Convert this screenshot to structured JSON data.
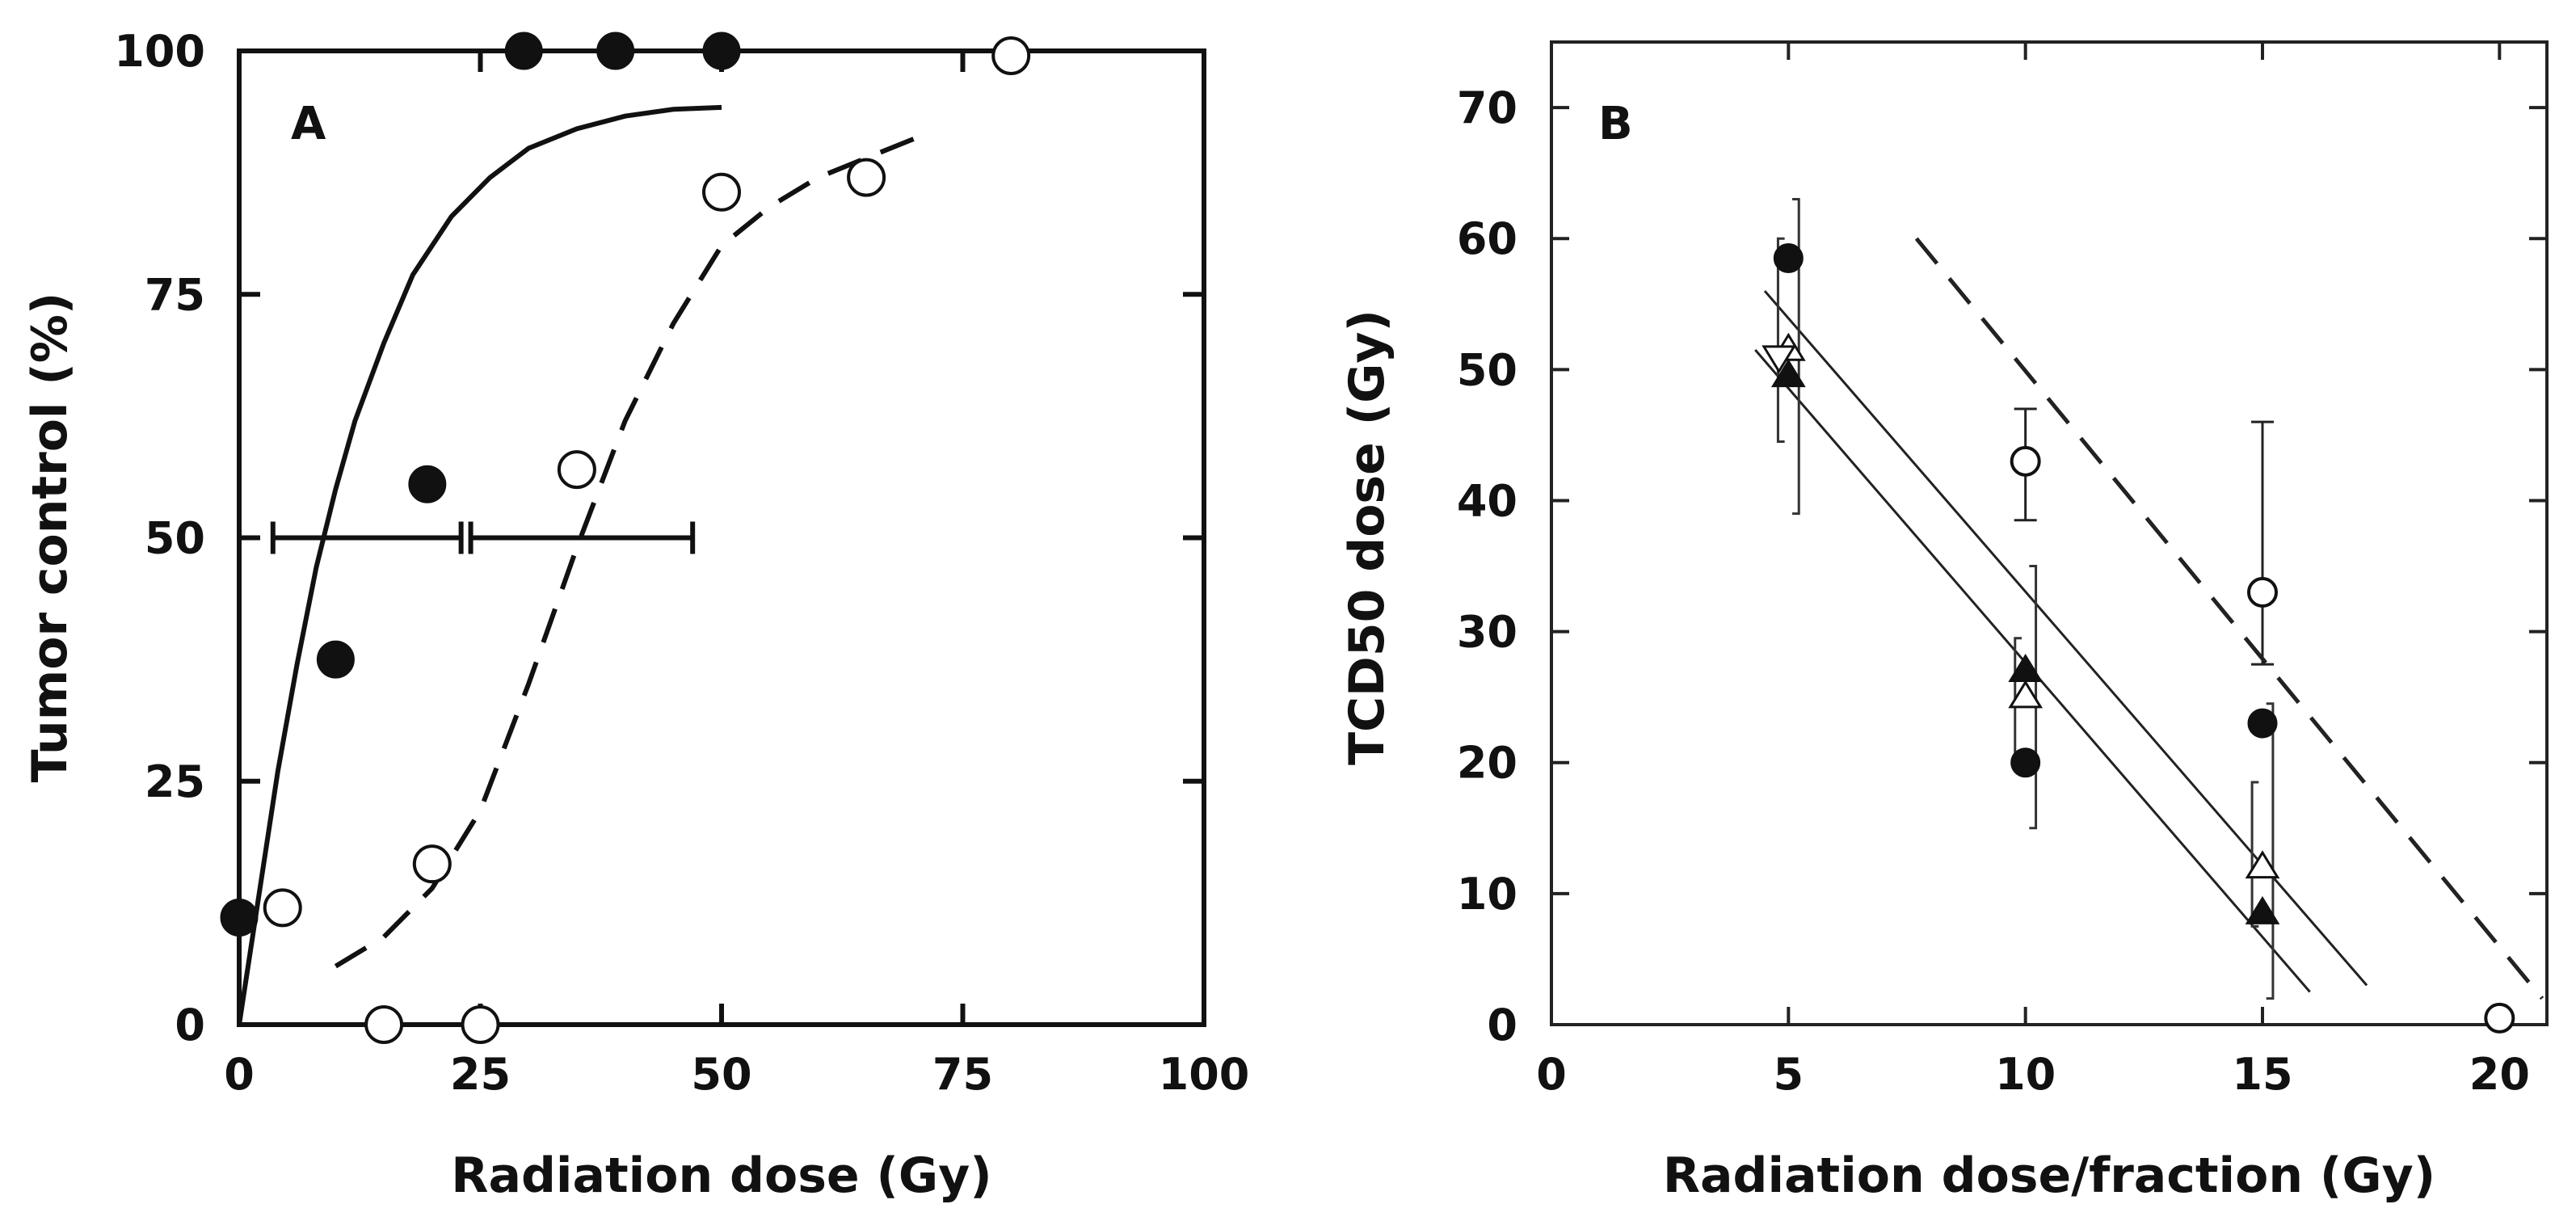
{
  "chart_data": [
    {
      "panel": "A",
      "type": "scatter",
      "xlabel": "Radiation dose (Gy)",
      "ylabel": "Tumor control (%)",
      "xlim": [
        0,
        100
      ],
      "ylim": [
        0,
        100
      ],
      "xticks": [
        "0",
        "25",
        "50",
        "75",
        "100"
      ],
      "yticks": [
        "0",
        "25",
        "50",
        "75",
        "100"
      ],
      "grid": false,
      "series": [
        {
          "marker": "filled-circle",
          "x": [
            0,
            10,
            19.5,
            29.5,
            39,
            50
          ],
          "y": [
            11,
            37.5,
            55.5,
            100,
            100,
            100
          ],
          "fit": {
            "style": "solid",
            "x": [
              0,
              2,
              4,
              6,
              8,
              10,
              12,
              15,
              18,
              22,
              26,
              30,
              35,
              40,
              45,
              50
            ],
            "y": [
              0,
              13,
              26,
              37,
              47,
              55,
              62,
              70,
              77,
              83,
              87,
              90,
              92,
              93.3,
              94,
              94.2
            ]
          }
        },
        {
          "marker": "open-circle",
          "x": [
            4.5,
            15,
            20,
            25,
            35,
            50,
            65,
            80
          ],
          "y": [
            12,
            0,
            16.5,
            0,
            57,
            85.5,
            87,
            99.5
          ],
          "fit": {
            "style": "dashed",
            "x": [
              10,
              15,
              20,
              25,
              30,
              35,
              40,
              45,
              50,
              55,
              60,
              65,
              70
            ],
            "y": [
              6,
              9,
              14,
              22,
              35,
              49,
              62,
              72,
              80,
              84,
              87,
              89,
              91
            ]
          }
        }
      ],
      "error_bars": [
        {
          "y": 50,
          "xmin": 3.5,
          "xmax": 23
        },
        {
          "y": 50,
          "xmin": 24,
          "xmax": 47
        }
      ]
    },
    {
      "panel": "B",
      "type": "scatter",
      "xlabel": "Radiation dose/fraction (Gy)",
      "ylabel": "TCD50 dose (Gy)",
      "xlim": [
        0,
        21
      ],
      "ylim": [
        0,
        75
      ],
      "xticks": [
        "0",
        "5",
        "10",
        "15",
        "20"
      ],
      "yticks": [
        "0",
        "10",
        "20",
        "30",
        "40",
        "50",
        "60",
        "70"
      ],
      "grid": false,
      "series": [
        {
          "marker": "filled-circle",
          "x": [
            5,
            10,
            15
          ],
          "y": [
            58.5,
            20,
            23
          ]
        },
        {
          "marker": "open-triangle",
          "x": [
            5,
            10,
            15
          ],
          "y": [
            51.5,
            25,
            12
          ]
        },
        {
          "marker": "filled-triangle",
          "x": [
            5,
            10,
            15
          ],
          "y": [
            49.5,
            27,
            8.5
          ]
        },
        {
          "marker": "open-circle",
          "x": [
            10,
            15,
            20
          ],
          "y": [
            43,
            33,
            0.5
          ]
        },
        {
          "marker": "open-inverted-triangle",
          "x": [
            4.8
          ],
          "y": [
            51
          ]
        }
      ],
      "error_bars": [
        {
          "x": 10,
          "ylow": 38.5,
          "yhigh": 47
        },
        {
          "x": 15,
          "ylow": 27.5,
          "yhigh": 46
        }
      ],
      "brackets": [
        {
          "x": 5,
          "ylow": 44.5,
          "yhigh": 60,
          "side": "left"
        },
        {
          "x": 5,
          "ylow": 39,
          "yhigh": 63,
          "side": "right"
        },
        {
          "x": 10,
          "ylow": 20.5,
          "yhigh": 29.5,
          "side": "left"
        },
        {
          "x": 10,
          "ylow": 15,
          "yhigh": 35,
          "side": "right"
        },
        {
          "x": 15,
          "ylow": 7.5,
          "yhigh": 18.5,
          "side": "left"
        },
        {
          "x": 15,
          "ylow": 2,
          "yhigh": 24.5,
          "side": "right"
        }
      ],
      "lines": [
        {
          "style": "solid",
          "x": [
            4.5,
            17.2
          ],
          "y": [
            56,
            3
          ]
        },
        {
          "style": "solid",
          "x": [
            4.3,
            16
          ],
          "y": [
            51.5,
            2.5
          ]
        },
        {
          "style": "dashed",
          "x": [
            7.7,
            20.9
          ],
          "y": [
            60,
            2
          ]
        }
      ]
    }
  ],
  "panels": {
    "a": {
      "label": "A",
      "xlabel": "Radiation dose (Gy)",
      "ylabel": "Tumor control (%)"
    },
    "b": {
      "label": "B",
      "xlabel": "Radiation dose/fraction (Gy)",
      "ylabel": "TCD50 dose (Gy)"
    }
  }
}
